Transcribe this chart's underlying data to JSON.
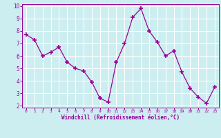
{
  "x": [
    0,
    1,
    2,
    3,
    4,
    5,
    6,
    7,
    8,
    9,
    10,
    11,
    12,
    13,
    14,
    15,
    16,
    17,
    18,
    19,
    20,
    21,
    22,
    23
  ],
  "y": [
    7.7,
    7.3,
    6.0,
    6.3,
    6.7,
    5.5,
    5.0,
    4.8,
    3.9,
    2.6,
    2.3,
    5.5,
    7.0,
    9.1,
    9.8,
    8.0,
    7.1,
    6.0,
    6.4,
    4.7,
    3.4,
    2.7,
    2.2,
    3.5
  ],
  "line_color": "#990099",
  "marker": "+",
  "background_color": "#cceef0",
  "grid_color": "#ffffff",
  "xlabel": "Windchill (Refroidissement éolien,°C)",
  "xlabel_color": "#990099",
  "tick_color": "#990099",
  "ylim": [
    2,
    10
  ],
  "xlim": [
    -0.5,
    23.5
  ],
  "yticks": [
    2,
    3,
    4,
    5,
    6,
    7,
    8,
    9,
    10
  ],
  "xticks": [
    0,
    1,
    2,
    3,
    4,
    5,
    6,
    7,
    8,
    9,
    10,
    11,
    12,
    13,
    14,
    15,
    16,
    17,
    18,
    19,
    20,
    21,
    22,
    23
  ],
  "figsize": [
    3.2,
    2.0
  ],
  "dpi": 100
}
